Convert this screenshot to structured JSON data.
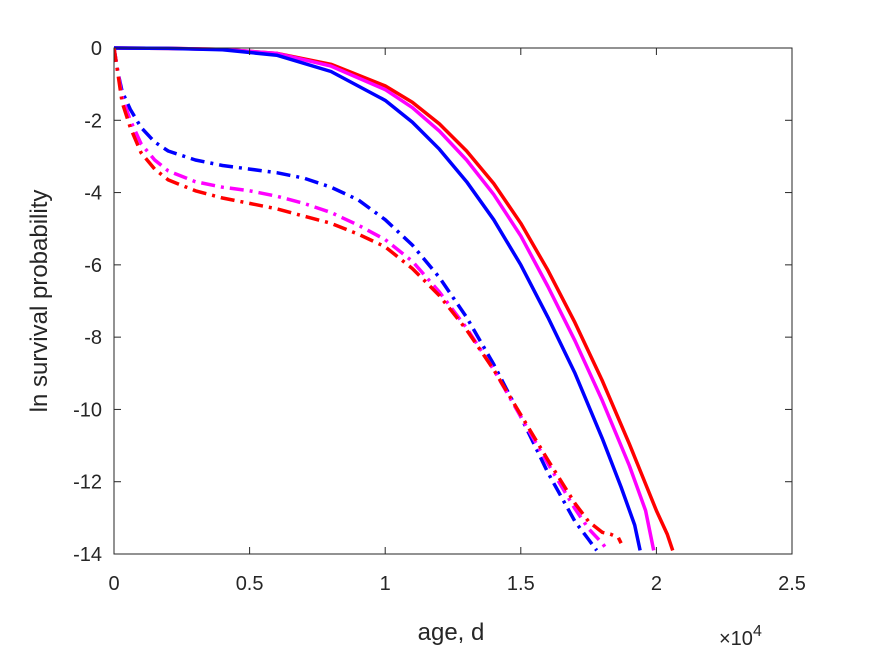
{
  "chart_data": {
    "type": "line",
    "title": "",
    "xlabel": "age, d",
    "ylabel": "ln survival probability",
    "x_exponent_label": "×10",
    "x_exponent_power": "4",
    "xlim": [
      0,
      25000
    ],
    "ylim": [
      -14,
      0
    ],
    "xticks": [
      0,
      5000,
      10000,
      15000,
      20000,
      25000
    ],
    "xtick_labels": [
      "0",
      "0.5",
      "1",
      "1.5",
      "2",
      "2.5"
    ],
    "yticks": [
      0,
      -2,
      -4,
      -6,
      -8,
      -10,
      -12,
      -14
    ],
    "ytick_labels": [
      "0",
      "-2",
      "-4",
      "-6",
      "-8",
      "-10",
      "-12",
      "-14"
    ],
    "grid": false,
    "series": [
      {
        "color": "#ff0000",
        "style": "solid",
        "x": [
          0,
          2000,
          4000,
          6000,
          8000,
          10000,
          11000,
          12000,
          13000,
          14000,
          15000,
          16000,
          17000,
          18000,
          19000,
          20000,
          20400,
          20600
        ],
        "y": [
          0,
          -0.01,
          -0.04,
          -0.15,
          -0.45,
          -1.05,
          -1.5,
          -2.1,
          -2.85,
          -3.75,
          -4.85,
          -6.15,
          -7.6,
          -9.2,
          -10.95,
          -12.8,
          -13.45,
          -13.9
        ]
      },
      {
        "color": "#ff00ff",
        "style": "solid",
        "x": [
          0,
          2000,
          4000,
          6000,
          8000,
          10000,
          11000,
          12000,
          13000,
          14000,
          15000,
          16000,
          17000,
          18000,
          19000,
          19600,
          19900
        ],
        "y": [
          0,
          -0.01,
          -0.04,
          -0.15,
          -0.5,
          -1.15,
          -1.65,
          -2.3,
          -3.1,
          -4.05,
          -5.2,
          -6.6,
          -8.1,
          -9.75,
          -11.55,
          -12.8,
          -13.9
        ]
      },
      {
        "color": "#0000ff",
        "style": "solid",
        "x": [
          0,
          2000,
          4000,
          6000,
          8000,
          10000,
          11000,
          12000,
          13000,
          14000,
          15000,
          16000,
          17000,
          18000,
          18700,
          19200,
          19400
        ],
        "y": [
          0,
          -0.01,
          -0.05,
          -0.2,
          -0.65,
          -1.45,
          -2.05,
          -2.8,
          -3.7,
          -4.75,
          -6.0,
          -7.45,
          -9.0,
          -10.8,
          -12.15,
          -13.2,
          -13.9
        ]
      },
      {
        "color": "#0000ff",
        "style": "dashdot",
        "x": [
          0,
          150,
          300,
          600,
          1000,
          1500,
          2000,
          3000,
          4000,
          5000,
          6000,
          7000,
          8000,
          9000,
          10000,
          11000,
          12000,
          13000,
          14000,
          15000,
          16000,
          17000,
          17500,
          17800
        ],
        "y": [
          0,
          -0.7,
          -1.2,
          -1.7,
          -2.2,
          -2.6,
          -2.85,
          -3.1,
          -3.25,
          -3.35,
          -3.45,
          -3.6,
          -3.85,
          -4.2,
          -4.75,
          -5.45,
          -6.35,
          -7.45,
          -8.75,
          -10.2,
          -11.75,
          -13.1,
          -13.6,
          -13.9
        ]
      },
      {
        "color": "#ff00ff",
        "style": "dashdot",
        "x": [
          0,
          150,
          300,
          600,
          1000,
          1500,
          2000,
          3000,
          4000,
          5000,
          6000,
          7000,
          8000,
          9000,
          10000,
          11000,
          12000,
          13000,
          14000,
          15000,
          16000,
          17000,
          17500,
          18000,
          18200
        ],
        "y": [
          0,
          -0.7,
          -1.35,
          -2.0,
          -2.65,
          -3.1,
          -3.4,
          -3.7,
          -3.85,
          -3.95,
          -4.1,
          -4.3,
          -4.55,
          -4.9,
          -5.3,
          -5.9,
          -6.75,
          -7.75,
          -8.9,
          -10.2,
          -11.5,
          -12.75,
          -13.3,
          -13.7,
          -13.9
        ]
      },
      {
        "color": "#ff0000",
        "style": "dashdot",
        "x": [
          0,
          150,
          300,
          600,
          1000,
          1500,
          2000,
          3000,
          4000,
          5000,
          6000,
          7000,
          8000,
          9000,
          10000,
          11000,
          12000,
          13000,
          14000,
          15000,
          16000,
          17000,
          17500,
          18000,
          18300,
          18600,
          18700
        ],
        "y": [
          0,
          -0.75,
          -1.5,
          -2.2,
          -2.9,
          -3.35,
          -3.65,
          -3.95,
          -4.15,
          -4.3,
          -4.45,
          -4.65,
          -4.85,
          -5.15,
          -5.5,
          -6.1,
          -6.85,
          -7.8,
          -8.9,
          -10.15,
          -11.4,
          -12.6,
          -13.1,
          -13.4,
          -13.45,
          -13.55,
          -13.7
        ]
      }
    ]
  }
}
